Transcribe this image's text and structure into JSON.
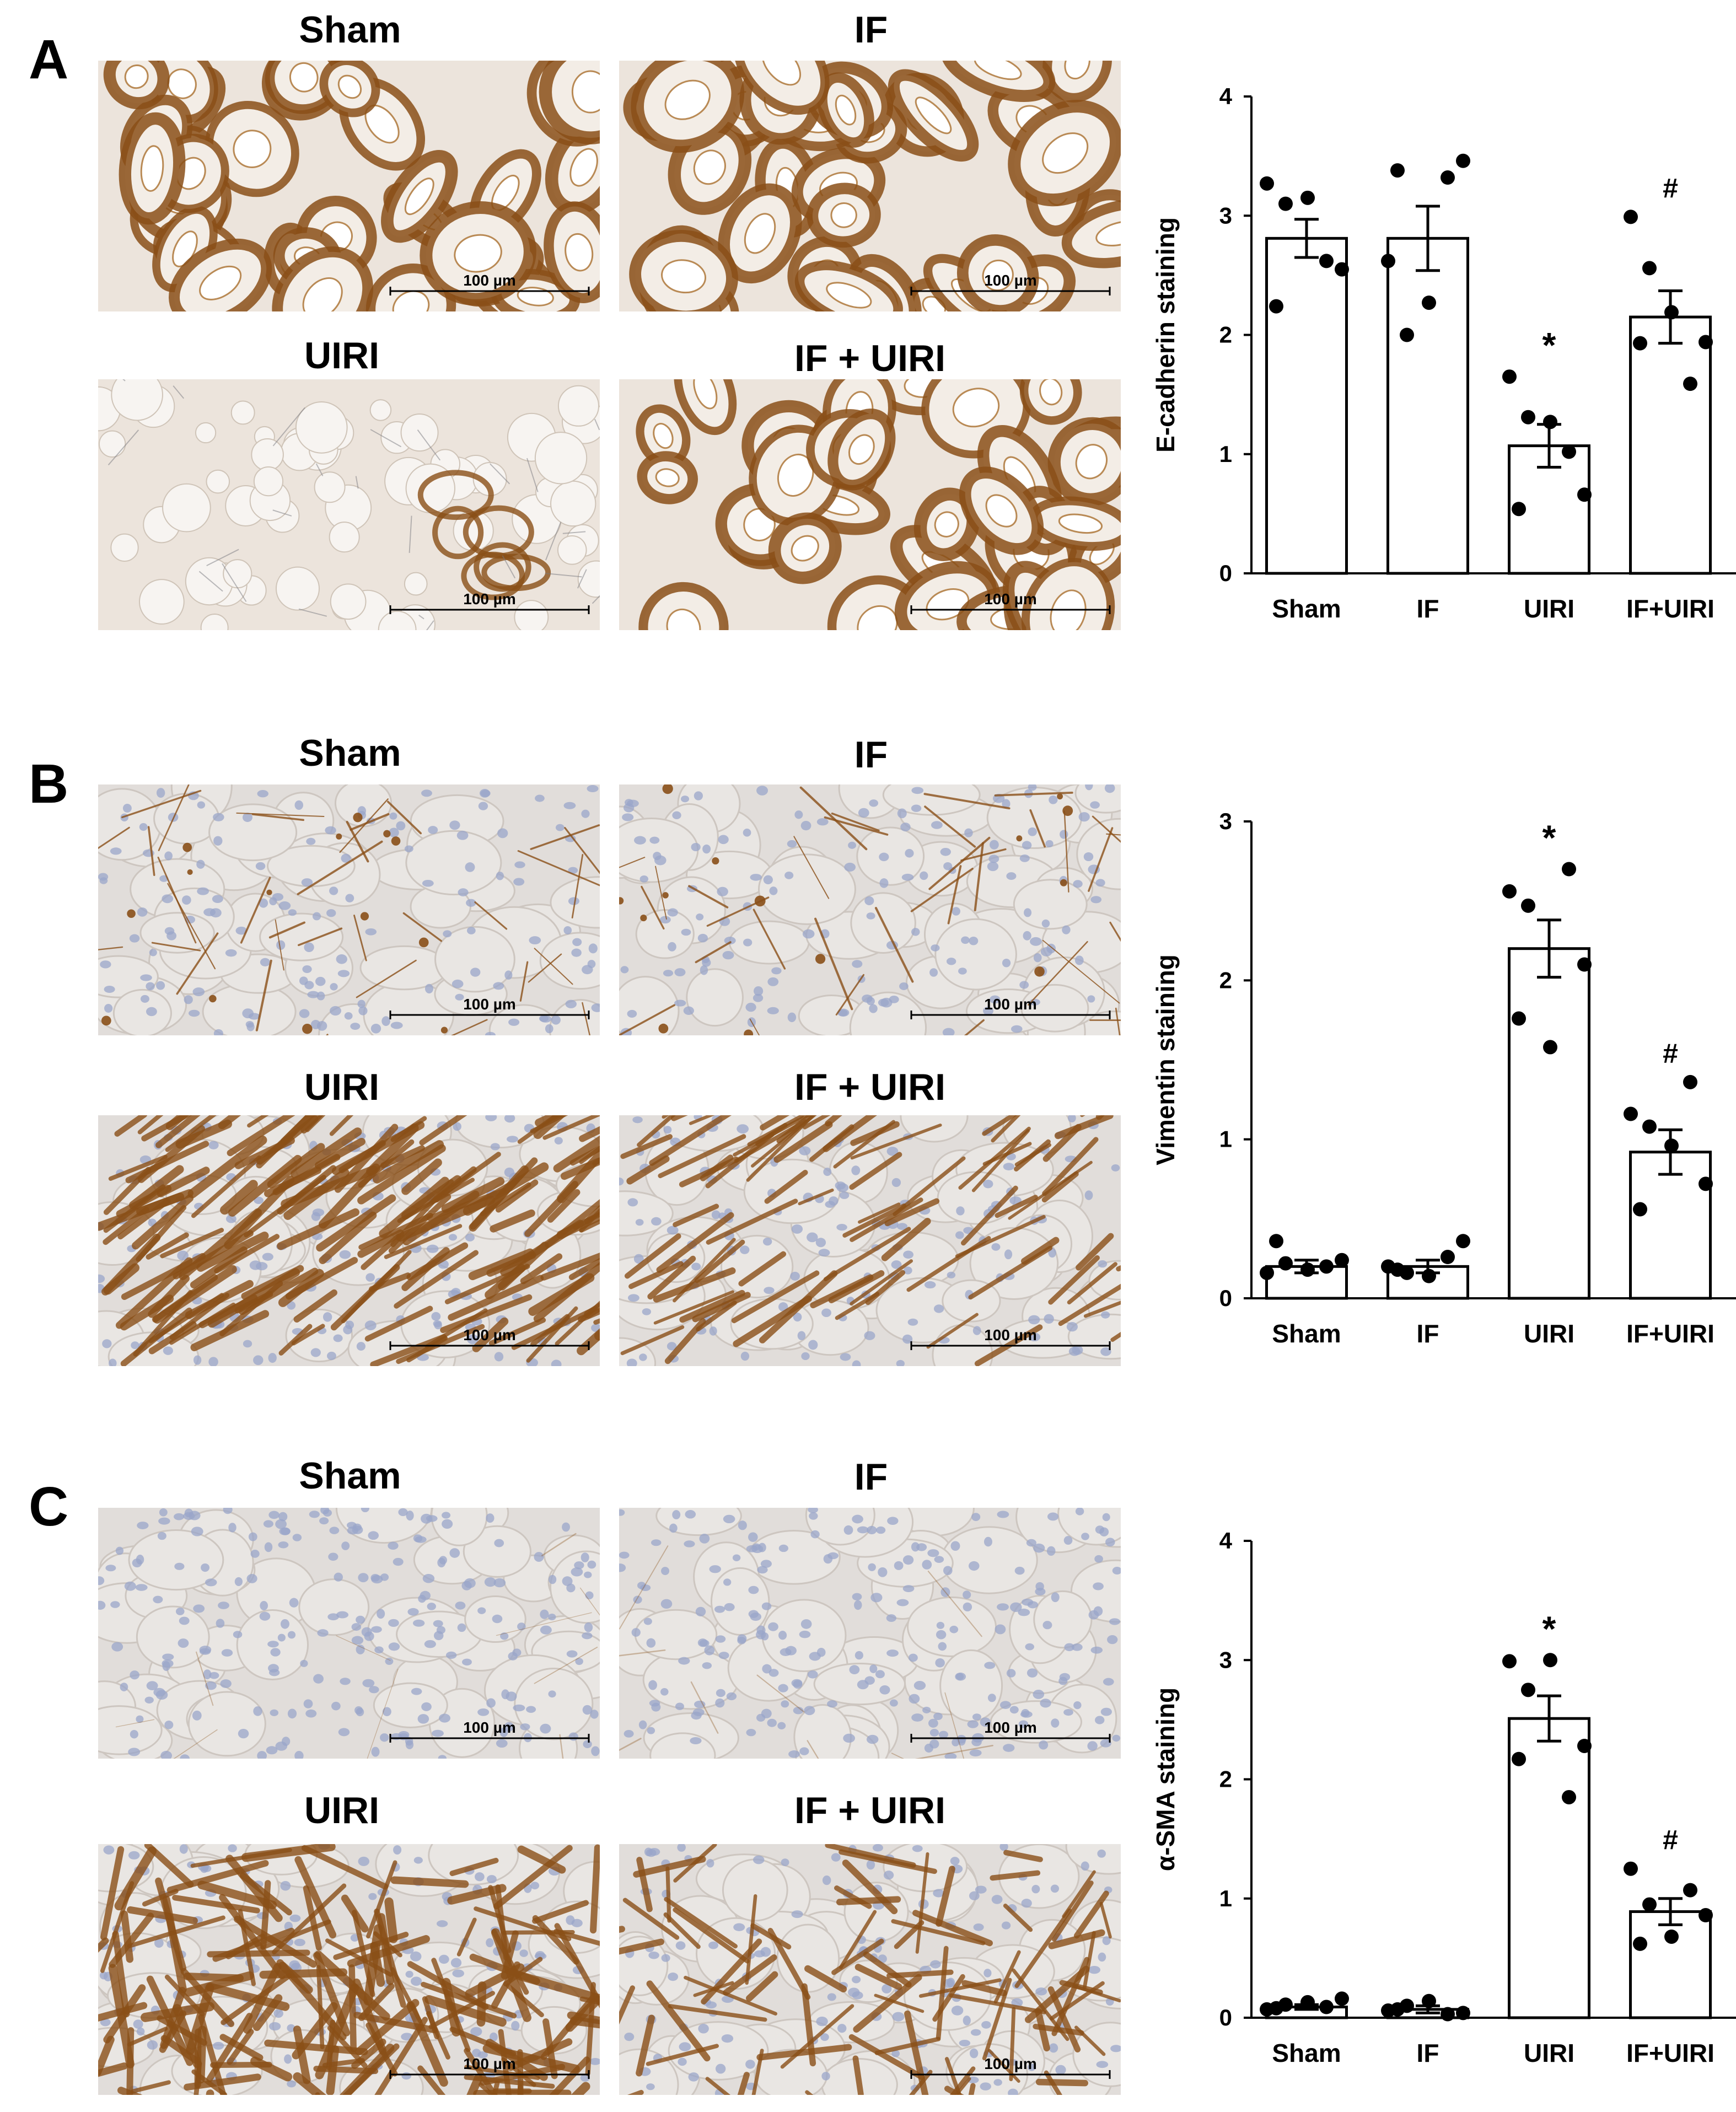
{
  "scale_bar_label": "100 µm",
  "colors": {
    "tissue_bg_A": "#ece4dc",
    "tissue_bg_BC": "#e1ddda",
    "stain_brown": "#8a4f17",
    "nuclei_blue": "#9aa6c9"
  },
  "panels": [
    {
      "letter": "A",
      "images": [
        {
          "label": "Sham",
          "stain": "strong-tubular"
        },
        {
          "label": "IF",
          "stain": "strong-tubular"
        },
        {
          "label": "UIRI",
          "stain": "weak-sparse"
        },
        {
          "label": "IF + UIRI",
          "stain": "strong-tubular"
        }
      ]
    },
    {
      "letter": "B",
      "images": [
        {
          "label": "Sham",
          "stain": "light-interstitial"
        },
        {
          "label": "IF",
          "stain": "light-interstitial"
        },
        {
          "label": "UIRI",
          "stain": "dense-fibrous"
        },
        {
          "label": "IF + UIRI",
          "stain": "moderate-fibrous"
        }
      ]
    },
    {
      "letter": "C",
      "images": [
        {
          "label": "Sham",
          "stain": "minimal"
        },
        {
          "label": "IF",
          "stain": "minimal"
        },
        {
          "label": "UIRI",
          "stain": "dense-fibrous"
        },
        {
          "label": "IF + UIRI",
          "stain": "moderate-fibrous"
        }
      ]
    }
  ],
  "chart_data": [
    {
      "type": "bar",
      "ylabel": "E-cadherin staining",
      "categories": [
        "Sham",
        "IF",
        "UIRI",
        "IF+UIRI"
      ],
      "values": [
        2.81,
        2.81,
        1.07,
        2.15
      ],
      "errors": [
        0.16,
        0.27,
        0.18,
        0.22
      ],
      "points": [
        [
          3.27,
          3.1,
          3.15,
          2.62,
          2.55,
          2.24
        ],
        [
          2.62,
          2.0,
          2.27,
          3.32,
          3.46,
          3.38
        ],
        [
          1.65,
          1.31,
          1.27,
          1.02,
          0.66,
          0.54
        ],
        [
          2.99,
          2.56,
          2.19,
          1.59,
          1.94,
          1.93
        ]
      ],
      "annotations": [
        "",
        "",
        "*",
        "#"
      ],
      "ylim": [
        0,
        4
      ],
      "yticks": [
        "0",
        "1",
        "2",
        "3",
        "4"
      ]
    },
    {
      "type": "bar",
      "ylabel": "Vimentin staining",
      "categories": [
        "Sham",
        "IF",
        "UIRI",
        "IF+UIRI"
      ],
      "values": [
        0.2,
        0.2,
        2.2,
        0.92
      ],
      "errors": [
        0.04,
        0.04,
        0.18,
        0.14
      ],
      "points": [
        [
          0.16,
          0.22,
          0.18,
          0.2,
          0.24,
          0.36
        ],
        [
          0.2,
          0.16,
          0.14,
          0.26,
          0.36,
          0.18
        ],
        [
          2.56,
          2.47,
          1.58,
          2.7,
          2.1,
          1.76
        ],
        [
          1.16,
          1.08,
          0.96,
          1.36,
          0.72,
          0.56
        ]
      ],
      "annotations": [
        "",
        "",
        "*",
        "#"
      ],
      "ylim": [
        0,
        3
      ],
      "yticks": [
        "0",
        "1",
        "2",
        "3"
      ]
    },
    {
      "type": "bar",
      "ylabel": "α-SMA staining",
      "categories": [
        "Sham",
        "IF",
        "UIRI",
        "IF+UIRI"
      ],
      "values": [
        0.09,
        0.07,
        2.51,
        0.89
      ],
      "errors": [
        0.02,
        0.03,
        0.19,
        0.11
      ],
      "points": [
        [
          0.07,
          0.11,
          0.13,
          0.09,
          0.16,
          0.08
        ],
        [
          0.06,
          0.1,
          0.14,
          0.03,
          0.04,
          0.07
        ],
        [
          2.99,
          2.75,
          3.0,
          1.85,
          2.28,
          2.17
        ],
        [
          1.25,
          0.95,
          0.68,
          1.07,
          0.86,
          0.62
        ]
      ],
      "annotations": [
        "",
        "",
        "*",
        "#"
      ],
      "ylim": [
        0,
        4
      ],
      "yticks": [
        "0",
        "1",
        "2",
        "3",
        "4"
      ]
    }
  ]
}
